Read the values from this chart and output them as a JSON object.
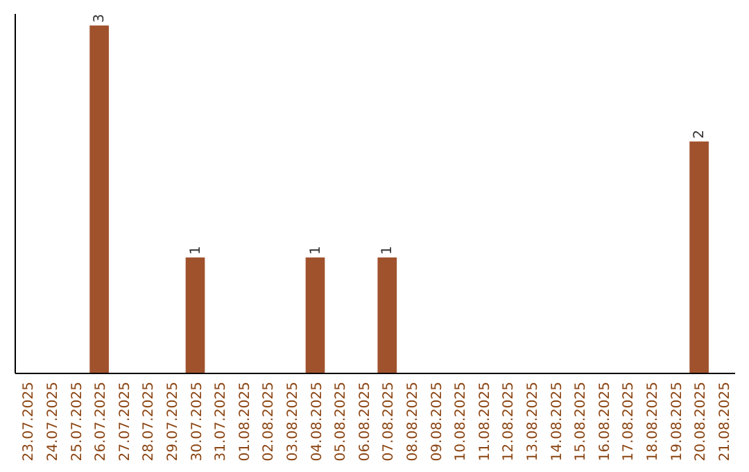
{
  "chart_data": {
    "type": "bar",
    "categories": [
      "23.07.2025",
      "24.07.2025",
      "25.07.2025",
      "26.07.2025",
      "27.07.2025",
      "28.07.2025",
      "29.07.2025",
      "30.07.2025",
      "31.07.2025",
      "01.08.2025",
      "02.08.2025",
      "03.08.2025",
      "04.08.2025",
      "05.08.2025",
      "06.08.2025",
      "07.08.2025",
      "08.08.2025",
      "09.08.2025",
      "10.08.2025",
      "11.08.2025",
      "12.08.2025",
      "13.08.2025",
      "14.08.2025",
      "15.08.2025",
      "16.08.2025",
      "17.08.2025",
      "18.08.2025",
      "19.08.2025",
      "20.08.2025",
      "21.08.2025"
    ],
    "values": [
      null,
      null,
      null,
      3,
      null,
      null,
      null,
      1,
      null,
      null,
      null,
      null,
      1,
      null,
      null,
      1,
      null,
      null,
      null,
      null,
      null,
      null,
      null,
      null,
      null,
      null,
      null,
      null,
      2,
      null
    ],
    "color": "#a0522d",
    "ylim": [
      0,
      3.1
    ],
    "tick_labels": "x",
    "data_labels": true
  }
}
